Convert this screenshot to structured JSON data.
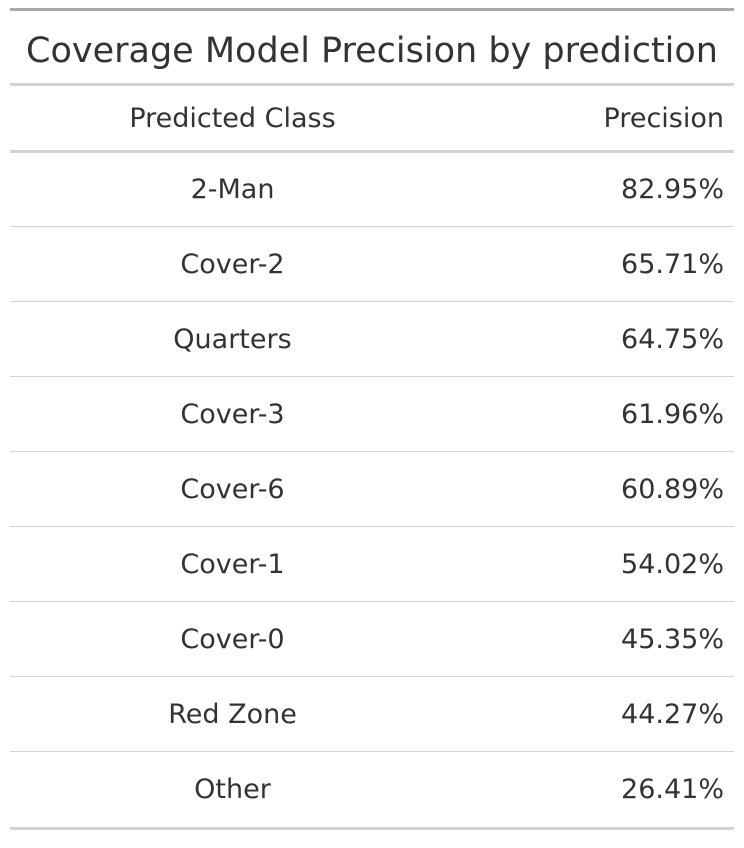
{
  "table": {
    "title": "Coverage Model Precision by prediction",
    "columns": [
      "Predicted Class",
      "Precision"
    ],
    "rows": [
      {
        "predicted_class": "2-Man",
        "precision": "82.95%"
      },
      {
        "predicted_class": "Cover-2",
        "precision": "65.71%"
      },
      {
        "predicted_class": "Quarters",
        "precision": "64.75%"
      },
      {
        "predicted_class": "Cover-3",
        "precision": "61.96%"
      },
      {
        "predicted_class": "Cover-6",
        "precision": "60.89%"
      },
      {
        "predicted_class": "Cover-1",
        "precision": "54.02%"
      },
      {
        "predicted_class": "Cover-0",
        "precision": "45.35%"
      },
      {
        "predicted_class": "Red Zone",
        "precision": "44.27%"
      },
      {
        "predicted_class": "Other",
        "precision": "26.41%"
      }
    ]
  }
}
